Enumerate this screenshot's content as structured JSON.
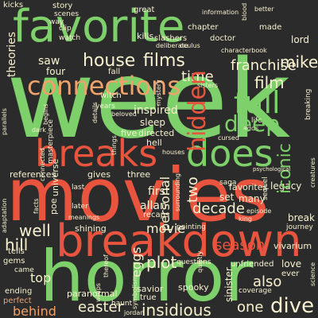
{
  "palette": {
    "background": "#2b2b2b",
    "green": "#7ed06a",
    "red": "#e8543e",
    "orange": "#f0a26a",
    "cream": "#f7f1cf",
    "dark_green": "#4e9a5a"
  },
  "words": {
    "week": "week",
    "movies": "movies",
    "horror": "horror",
    "favorite": "favorite",
    "breakdown": "breakdown",
    "breaks": "breaks",
    "does": "does",
    "connections": "connections",
    "full": "full",
    "hidden": "hidden",
    "deep": "deep",
    "franchise": "franchise",
    "film": "film",
    "house": "house",
    "films": "films",
    "mike": "mike",
    "time": "time",
    "iconic": "iconic",
    "well": "well",
    "hill": "hill",
    "top": "top",
    "behind": "behind",
    "easter": "easter",
    "eggs": "eggs",
    "plot": "plot",
    "insidious": "insidious",
    "one": "one",
    "dive": "dive",
    "also": "also",
    "season": "season",
    "decade": "decade",
    "two": "two",
    "personal": "personal",
    "theories": "theories",
    "kicks": "kicks",
    "saw": "saw",
    "four": "four",
    "inspired": "inspired",
    "sleep": "sleep",
    "five": "five",
    "directed": "directed",
    "hell": "hell",
    "three": "three",
    "gives": "gives",
    "references": "references",
    "universe": "universe",
    "first": "first",
    "allan": "allan",
    "recaps": "recaps",
    "poe": "poe",
    "shining": "shining",
    "movie": "movie",
    "spooky": "spooky",
    "sinister": "sinister",
    "break": "break",
    "vivarium": "vivarium",
    "legacy": "legacy",
    "favorites": "favorites",
    "many": "many",
    "set": "set",
    "lord": "lord",
    "made": "made",
    "love": "love",
    "chapter": "chapter",
    "doctor": "doctor",
    "kills": "kills",
    "slashers": "slashers",
    "great": "great",
    "scenes": "scenes",
    "story": "story",
    "way": "way",
    "watch": "watch",
    "clip": "clip",
    "fall": "fall",
    "witch": "witch",
    "years": "years",
    "life": "life",
    "breaking": "breaking",
    "saga": "saga",
    "creatures": "creatures",
    "gems": "gems",
    "tells": "tells",
    "came": "came",
    "ending": "ending",
    "perfect": "perfect",
    "paranormal": "paranormal",
    "savior": "savior",
    "true": "true",
    "haunt": "haunt",
    "jordan": "jordan",
    "unfriended": "unfriended",
    "coverage": "coverage",
    "ever": "ever",
    "journey": "journey",
    "questions": "questions",
    "sequel": "sequel",
    "pointing": "pointing",
    "later": "later",
    "last": "last",
    "adds": "adds",
    "cursed": "cursed",
    "information": "information",
    "better": "better",
    "characterbook": "characterbook",
    "blood": "blood",
    "masterpiece": "masterpiece",
    "beloved": "beloved",
    "things": "things",
    "houses": "houses",
    "thereof": "thereof",
    "wraps": "wraps",
    "parallels": "parallels",
    "adaptation": "adaptation",
    "facts": "facts",
    "meanings": "meanings",
    "dark": "dark",
    "begins": "begins",
    "symbolism": "symbolism",
    "surrounding": "surrounding",
    "science": "science",
    "psychological": "psychological",
    "quietly": "quietly",
    "king": "king",
    "episode": "episode",
    "details": "details",
    "connected": "connected",
    "deliberate": "deliberate",
    "oculus": "oculus",
    "sisters": "sisters",
    "mystery": "mystery"
  }
}
